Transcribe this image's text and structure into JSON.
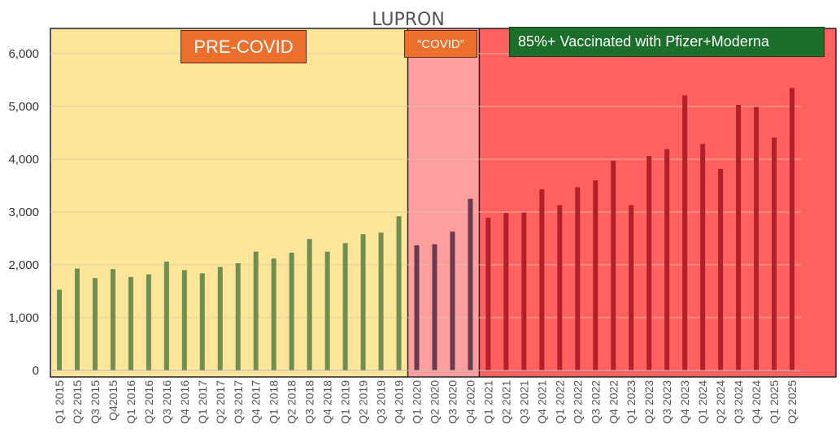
{
  "chart_data": {
    "type": "bar",
    "title": "LUPRON",
    "xlabel": "",
    "ylabel": "",
    "ylim": [
      0,
      6500
    ],
    "yticks": [
      "0",
      "1,000",
      "2,000",
      "3,000",
      "4,000",
      "5,000",
      "6,000"
    ],
    "ytick_values": [
      0,
      1000,
      2000,
      3000,
      4000,
      5000,
      6000
    ],
    "grid": true,
    "categories": [
      "Q1 2015",
      "Q2 2015",
      "Q3 2015",
      "Q42015",
      "Q1 2016",
      "Q2 2016",
      "Q3 2016",
      "Q4 2016",
      "Q1 2017",
      "Q2 2017",
      "Q3 2017",
      "Q4 2017",
      "Q1 2018",
      "Q2 2018",
      "Q3 2018",
      "Q4 2018",
      "Q1 2019",
      "Q2 2019",
      "Q3 2019",
      "Q4 2019",
      "Q1 2020",
      "Q2 2020",
      "Q3 2020",
      "Q4 2020",
      "Q1 2021",
      "Q2 2021",
      "Q3 2021",
      "Q4 2021",
      "Q1 2022",
      "Q2 2022",
      "Q3 2022",
      "Q4 2022",
      "Q1 2023",
      "Q2 2023",
      "Q3 2023",
      "Q4 2023",
      "Q1 2024",
      "Q2 2024",
      "Q3 2024",
      "Q4 2024",
      "Q1 2025",
      "Q2 2025"
    ],
    "values": [
      1530,
      1930,
      1750,
      1920,
      1770,
      1820,
      2060,
      1900,
      1840,
      1960,
      2030,
      2250,
      2120,
      2230,
      2490,
      2250,
      2410,
      2580,
      2610,
      2920,
      2370,
      2390,
      2630,
      3250,
      2890,
      2980,
      2990,
      3430,
      3130,
      3470,
      3600,
      3970,
      3130,
      4060,
      4190,
      5210,
      4290,
      3820,
      5030,
      4990,
      4410,
      5350
    ],
    "bands": [
      {
        "label": "PRE-COVID",
        "from_index": 0,
        "to_index": 19,
        "color": "#fde599",
        "bar_color": "#6f8f4e"
      },
      {
        "label": "“COVID”",
        "from_index": 20,
        "to_index": 23,
        "color": "#ff9e9e",
        "bar_color": "#6a3a52"
      },
      {
        "label": "85%+ Vaccinated with Pfizer+Moderna",
        "from_index": 24,
        "to_index": 41,
        "color": "#ff6060",
        "bar_color": "#b3202a"
      }
    ],
    "colors": {
      "frame": "#1a2330",
      "gridline": "#d8c8a0",
      "axis": "#555555",
      "label_orange": "#ec6f2c",
      "label_green": "#1b6f2a"
    }
  }
}
